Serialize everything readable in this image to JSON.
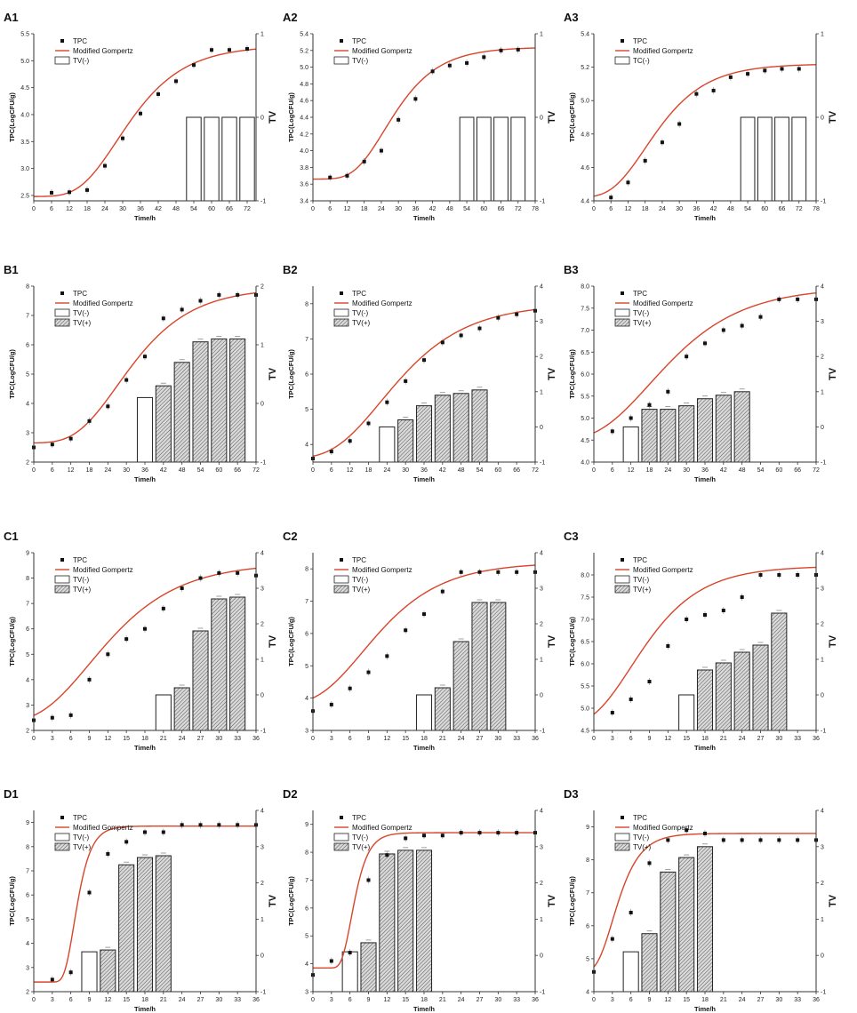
{
  "colors": {
    "fit": "#d8452b",
    "points": "#111111",
    "axis": "#333333",
    "bar_edge": "#222222"
  },
  "chart_data": [
    {
      "type": "bar+line",
      "panel": "A1",
      "xlabel": "Time/h",
      "ylabel": "TPC(LogCFU/g)",
      "y2label": "TV",
      "xlim": [
        0,
        75
      ],
      "xticks": [
        0,
        6,
        12,
        18,
        24,
        30,
        36,
        42,
        48,
        54,
        60,
        66,
        72
      ],
      "ylim": [
        2.4,
        5.5
      ],
      "yticks": [
        2.5,
        3.0,
        3.5,
        4.0,
        4.5,
        5.0,
        5.5
      ],
      "y2lim": [
        -1,
        1
      ],
      "y2ticks": [
        -1,
        0,
        1
      ],
      "tpc_x": [
        6,
        12,
        18,
        24,
        30,
        36,
        42,
        48,
        54,
        60,
        66,
        72
      ],
      "tpc_y": [
        2.55,
        2.56,
        2.6,
        3.05,
        3.56,
        4.02,
        4.38,
        4.62,
        4.92,
        5.2,
        5.2,
        5.22
      ],
      "gompertz": {
        "a": 2.48,
        "c": 2.8,
        "b": 0.08,
        "m": 28
      },
      "tv_neg": {
        "x": [
          54,
          60,
          66,
          72
        ],
        "values": [
          0,
          0,
          0,
          0
        ]
      },
      "tv_pos": {
        "x": [],
        "values": []
      },
      "legend": [
        "TPC",
        "Modified Gompertz",
        "TV(-)"
      ]
    },
    {
      "type": "bar+line",
      "panel": "A2",
      "xlabel": "Time/h",
      "ylabel": "TPC(LogCFU/g)",
      "y2label": "TV",
      "xlim": [
        0,
        78
      ],
      "xticks": [
        0,
        6,
        12,
        18,
        24,
        30,
        36,
        42,
        48,
        54,
        60,
        66,
        72,
        78
      ],
      "ylim": [
        3.4,
        5.4
      ],
      "yticks": [
        3.4,
        3.6,
        3.8,
        4.0,
        4.2,
        4.4,
        4.6,
        4.8,
        5.0,
        5.2,
        5.4
      ],
      "y2lim": [
        -1,
        1
      ],
      "y2ticks": [
        -1,
        0,
        1
      ],
      "tpc_x": [
        6,
        12,
        18,
        24,
        30,
        36,
        42,
        48,
        54,
        60,
        66,
        72
      ],
      "tpc_y": [
        3.68,
        3.7,
        3.87,
        4.0,
        4.37,
        4.62,
        4.95,
        5.02,
        5.05,
        5.12,
        5.2,
        5.21
      ],
      "gompertz": {
        "a": 3.66,
        "c": 1.58,
        "b": 0.095,
        "m": 25
      },
      "tv_neg": {
        "x": [
          54,
          60,
          66,
          72
        ],
        "values": [
          0,
          0,
          0,
          0
        ]
      },
      "tv_pos": {
        "x": [],
        "values": []
      },
      "legend": [
        "TPC",
        "Modified Gompertz",
        "TV(-)"
      ]
    },
    {
      "type": "bar+line",
      "panel": "A3",
      "xlabel": "Time/h",
      "ylabel": "TPC(LogCFU/g)",
      "y2label": "TV",
      "xlim": [
        0,
        78
      ],
      "xticks": [
        0,
        6,
        12,
        18,
        24,
        30,
        36,
        42,
        48,
        54,
        60,
        66,
        72,
        78
      ],
      "ylim": [
        4.4,
        5.4
      ],
      "yticks": [
        4.4,
        4.6,
        4.8,
        5.0,
        5.2,
        5.4
      ],
      "y2lim": [
        -1,
        1
      ],
      "y2ticks": [
        -1,
        0,
        1
      ],
      "tpc_x": [
        6,
        12,
        18,
        24,
        30,
        36,
        42,
        48,
        54,
        60,
        66,
        72
      ],
      "tpc_y": [
        4.42,
        4.51,
        4.64,
        4.75,
        4.86,
        5.04,
        5.06,
        5.14,
        5.16,
        5.18,
        5.19,
        5.19
      ],
      "gompertz": {
        "a": 4.42,
        "c": 0.8,
        "b": 0.085,
        "m": 18
      },
      "tv_neg": {
        "x": [
          54,
          60,
          66,
          72
        ],
        "values": [
          0,
          0,
          0,
          0
        ]
      },
      "tv_pos": {
        "x": [],
        "values": []
      },
      "legend": [
        "TPC",
        "Modified Gompertz",
        "TC(-)"
      ]
    },
    {
      "type": "bar+line",
      "panel": "B1",
      "xlabel": "Time/h",
      "ylabel": "TPC(LogCFU/g)",
      "y2label": "TV",
      "xlim": [
        0,
        72
      ],
      "xticks": [
        0,
        6,
        12,
        18,
        24,
        30,
        36,
        42,
        48,
        54,
        60,
        66,
        72
      ],
      "ylim": [
        2,
        8
      ],
      "yticks": [
        2,
        3,
        4,
        5,
        6,
        7,
        8
      ],
      "y2lim": [
        -1,
        2
      ],
      "y2ticks": [
        -1,
        0,
        1,
        2
      ],
      "tpc_x": [
        0,
        6,
        12,
        18,
        24,
        30,
        36,
        42,
        48,
        54,
        60,
        66,
        72
      ],
      "tpc_y": [
        2.5,
        2.6,
        2.8,
        3.4,
        3.9,
        4.8,
        5.6,
        6.9,
        7.2,
        7.5,
        7.7,
        7.7,
        7.7
      ],
      "gompertz": {
        "a": 2.65,
        "c": 5.3,
        "b": 0.075,
        "m": 27
      },
      "tv_neg": {
        "x": [
          36
        ],
        "values": [
          0.1
        ]
      },
      "tv_pos": {
        "x": [
          42,
          48,
          54,
          60,
          66
        ],
        "values": [
          0.3,
          0.7,
          1.05,
          1.1,
          1.1
        ]
      },
      "legend": [
        "TPC",
        "Modified Gompertz",
        "TV(-)",
        "TV(+)"
      ]
    },
    {
      "type": "bar+line",
      "panel": "B2",
      "xlabel": "Time/h",
      "ylabel": "TPC(LogCFU/g)",
      "y2label": "TV",
      "xlim": [
        0,
        72
      ],
      "xticks": [
        0,
        6,
        12,
        18,
        24,
        30,
        36,
        42,
        48,
        54,
        60,
        66,
        72
      ],
      "ylim": [
        3.5,
        8.5
      ],
      "yticks": [
        4,
        5,
        6,
        7,
        8
      ],
      "y2lim": [
        -1,
        4
      ],
      "y2ticks": [
        -1,
        0,
        1,
        2,
        3,
        4
      ],
      "tpc_x": [
        0,
        6,
        12,
        18,
        24,
        30,
        36,
        42,
        48,
        54,
        60,
        66,
        72
      ],
      "tpc_y": [
        3.6,
        3.8,
        4.1,
        4.6,
        5.2,
        5.8,
        6.4,
        6.9,
        7.1,
        7.3,
        7.6,
        7.7,
        7.8
      ],
      "gompertz": {
        "a": 3.6,
        "c": 4.4,
        "b": 0.065,
        "m": 22
      },
      "tv_neg": {
        "x": [
          24
        ],
        "values": [
          0
        ]
      },
      "tv_pos": {
        "x": [
          30,
          36,
          42,
          48,
          54
        ],
        "values": [
          0.2,
          0.6,
          0.9,
          0.95,
          1.05
        ]
      },
      "legend": [
        "TPC",
        "Modified Gompertz",
        "TV(-)",
        "TV(+)"
      ]
    },
    {
      "type": "bar+line",
      "panel": "B3",
      "xlabel": "Time/h",
      "ylabel": "TPC(LogCFU/g)",
      "y2label": "TV",
      "xlim": [
        0,
        72
      ],
      "xticks": [
        0,
        6,
        12,
        18,
        24,
        30,
        36,
        42,
        48,
        54,
        60,
        66,
        72
      ],
      "ylim": [
        4.0,
        8.0
      ],
      "yticks": [
        4.0,
        4.5,
        5.0,
        5.5,
        6.0,
        6.5,
        7.0,
        7.5,
        8.0
      ],
      "y2lim": [
        -1,
        4
      ],
      "y2ticks": [
        -1,
        0,
        1,
        2,
        3,
        4
      ],
      "tpc_x": [
        6,
        12,
        18,
        24,
        30,
        36,
        42,
        48,
        54,
        60,
        66,
        72
      ],
      "tpc_y": [
        4.7,
        5.0,
        5.3,
        5.6,
        6.4,
        6.7,
        7.0,
        7.1,
        7.3,
        7.7,
        7.7,
        7.7
      ],
      "gompertz": {
        "a": 4.48,
        "c": 3.5,
        "b": 0.06,
        "m": 18
      },
      "tv_neg": {
        "x": [
          12
        ],
        "values": [
          0
        ]
      },
      "tv_pos": {
        "x": [
          18,
          24,
          30,
          36,
          42,
          48
        ],
        "values": [
          0.5,
          0.5,
          0.6,
          0.8,
          0.9,
          1.0
        ]
      },
      "legend": [
        "TPC",
        "Modified Gompertz",
        "TV(-)",
        "TV(+)"
      ]
    },
    {
      "type": "bar+line",
      "panel": "C1",
      "xlabel": "Time/h",
      "ylabel": "TPC(LogCFU/g)",
      "y2label": "TV",
      "xlim": [
        0,
        36
      ],
      "xticks": [
        0,
        3,
        6,
        9,
        12,
        15,
        18,
        21,
        24,
        27,
        30,
        33,
        36
      ],
      "ylim": [
        2,
        9
      ],
      "yticks": [
        2,
        3,
        4,
        5,
        6,
        7,
        8,
        9
      ],
      "y2lim": [
        -1,
        4
      ],
      "y2ticks": [
        -1,
        0,
        1,
        2,
        3,
        4
      ],
      "tpc_x": [
        0,
        3,
        6,
        9,
        12,
        15,
        18,
        21,
        24,
        27,
        30,
        33,
        36
      ],
      "tpc_y": [
        2.4,
        2.5,
        2.6,
        4.0,
        5.0,
        5.6,
        6.0,
        6.8,
        7.6,
        8.0,
        8.2,
        8.2,
        8.1
      ],
      "gompertz": {
        "a": 2.3,
        "c": 6.3,
        "b": 0.125,
        "m": 9
      },
      "tv_neg": {
        "x": [
          21
        ],
        "values": [
          0
        ]
      },
      "tv_pos": {
        "x": [
          24,
          27,
          30,
          33
        ],
        "values": [
          0.2,
          1.8,
          2.7,
          2.75
        ]
      },
      "legend": [
        "TPC",
        "Modified Gompertz",
        "TV(-)",
        "TV(+)"
      ]
    },
    {
      "type": "bar+line",
      "panel": "C2",
      "xlabel": "Time/h",
      "ylabel": "TPC(LogCFU/g)",
      "y2label": "TV",
      "xlim": [
        0,
        36
      ],
      "xticks": [
        0,
        3,
        6,
        9,
        12,
        15,
        18,
        21,
        24,
        27,
        30,
        33,
        36
      ],
      "ylim": [
        3,
        8.5
      ],
      "yticks": [
        3,
        4,
        5,
        6,
        7,
        8
      ],
      "y2lim": [
        -1,
        4
      ],
      "y2ticks": [
        -1,
        0,
        1,
        2,
        3,
        4
      ],
      "tpc_x": [
        0,
        3,
        6,
        9,
        12,
        15,
        18,
        21,
        24,
        27,
        30,
        33,
        36
      ],
      "tpc_y": [
        3.6,
        3.8,
        4.3,
        4.8,
        5.3,
        6.1,
        6.6,
        7.3,
        7.9,
        7.9,
        7.9,
        7.9,
        7.9
      ],
      "gompertz": {
        "a": 3.8,
        "c": 4.4,
        "b": 0.14,
        "m": 8
      },
      "tv_neg": {
        "x": [
          18
        ],
        "values": [
          0
        ]
      },
      "tv_pos": {
        "x": [
          21,
          24,
          27,
          30
        ],
        "values": [
          0.2,
          1.5,
          2.6,
          2.6
        ]
      },
      "legend": [
        "TPC",
        "Modified Gompertz",
        "TV(-)",
        "TV(+)"
      ]
    },
    {
      "type": "bar+line",
      "panel": "C3",
      "xlabel": "Time/h",
      "ylabel": "TPC(LogCFU/g)",
      "y2label": "TV",
      "xlim": [
        0,
        36
      ],
      "xticks": [
        0,
        3,
        6,
        9,
        12,
        15,
        18,
        21,
        24,
        27,
        30,
        33,
        36
      ],
      "ylim": [
        4.5,
        8.5
      ],
      "yticks": [
        4.5,
        5.0,
        5.5,
        6.0,
        6.5,
        7.0,
        7.5,
        8.0
      ],
      "y2lim": [
        -1,
        4
      ],
      "y2ticks": [
        -1,
        0,
        1,
        2,
        3,
        4
      ],
      "tpc_x": [
        3,
        6,
        9,
        12,
        15,
        18,
        21,
        24,
        27,
        30,
        33,
        36
      ],
      "tpc_y": [
        4.9,
        5.2,
        5.6,
        6.4,
        7.0,
        7.1,
        7.2,
        7.5,
        8.0,
        8.0,
        8.0,
        8.0
      ],
      "gompertz": {
        "a": 4.6,
        "c": 3.6,
        "b": 0.16,
        "m": 6
      },
      "tv_neg": {
        "x": [
          15
        ],
        "values": [
          0
        ]
      },
      "tv_pos": {
        "x": [
          18,
          21,
          24,
          27,
          30
        ],
        "values": [
          0.7,
          0.9,
          1.2,
          1.4,
          2.3
        ]
      },
      "legend": [
        "TPC",
        "Modified Gompertz",
        "TV(-)",
        "TV(+)"
      ]
    },
    {
      "type": "bar+line",
      "panel": "D1",
      "xlabel": "Time/h",
      "ylabel": "TPC(LogCFU/g)",
      "y2label": "TV",
      "xlim": [
        0,
        36
      ],
      "xticks": [
        0,
        3,
        6,
        9,
        12,
        15,
        18,
        21,
        24,
        27,
        30,
        33,
        36
      ],
      "ylim": [
        2,
        9.5
      ],
      "yticks": [
        2,
        3,
        4,
        5,
        6,
        7,
        8,
        9
      ],
      "y2lim": [
        -1,
        4
      ],
      "y2ticks": [
        -1,
        0,
        1,
        2,
        3,
        4
      ],
      "tpc_x": [
        3,
        6,
        9,
        12,
        15,
        18,
        21,
        24,
        27,
        30,
        33,
        36
      ],
      "tpc_y": [
        2.5,
        2.8,
        6.1,
        7.7,
        8.2,
        8.6,
        8.6,
        8.9,
        8.9,
        8.9,
        8.9,
        8.9
      ],
      "gompertz": {
        "a": 2.4,
        "c": 6.45,
        "b": 0.65,
        "m": 6.5
      },
      "tv_neg": {
        "x": [
          9
        ],
        "values": [
          0.1
        ]
      },
      "tv_pos": {
        "x": [
          12,
          15,
          18,
          21
        ],
        "values": [
          0.15,
          2.5,
          2.7,
          2.75
        ]
      },
      "legend": [
        "TPC",
        "Modified Gompertz",
        "TV(-)",
        "TV(+)"
      ]
    },
    {
      "type": "bar+line",
      "panel": "D2",
      "xlabel": "Time/h",
      "ylabel": "TPC(LogCFU/g)",
      "y2label": "TV",
      "xlim": [
        0,
        36
      ],
      "xticks": [
        0,
        3,
        6,
        9,
        12,
        15,
        18,
        21,
        24,
        27,
        30,
        33,
        36
      ],
      "ylim": [
        3,
        9.5
      ],
      "yticks": [
        3,
        4,
        5,
        6,
        7,
        8,
        9
      ],
      "y2lim": [
        -1,
        4
      ],
      "y2ticks": [
        -1,
        0,
        1,
        2,
        3,
        4
      ],
      "tpc_x": [
        0,
        3,
        6,
        9,
        12,
        15,
        18,
        21,
        24,
        27,
        30,
        33,
        36
      ],
      "tpc_y": [
        3.6,
        4.1,
        4.4,
        7.0,
        7.9,
        8.5,
        8.6,
        8.6,
        8.7,
        8.7,
        8.7,
        8.7,
        8.7
      ],
      "gompertz": {
        "a": 3.85,
        "c": 4.85,
        "b": 0.65,
        "m": 6.2
      },
      "tv_neg": {
        "x": [
          6
        ],
        "values": [
          0.1
        ]
      },
      "tv_pos": {
        "x": [
          9,
          12,
          15,
          18
        ],
        "values": [
          0.35,
          2.8,
          2.9,
          2.9
        ]
      },
      "legend": [
        "TPC",
        "Modified Gompertz",
        "TV(-)",
        "TV(+)"
      ]
    },
    {
      "type": "bar+line",
      "panel": "D3",
      "xlabel": "Time/h",
      "ylabel": "TPC(LogCFU/g)",
      "y2label": "TV",
      "xlim": [
        0,
        36
      ],
      "xticks": [
        0,
        3,
        6,
        9,
        12,
        15,
        18,
        21,
        24,
        27,
        30,
        33,
        36
      ],
      "ylim": [
        4,
        9.5
      ],
      "yticks": [
        4,
        5,
        6,
        7,
        8,
        9
      ],
      "y2lim": [
        -1,
        4
      ],
      "y2ticks": [
        -1,
        0,
        1,
        2,
        3,
        4
      ],
      "tpc_x": [
        0,
        3,
        6,
        9,
        12,
        15,
        18,
        21,
        24,
        27,
        30,
        33,
        36
      ],
      "tpc_y": [
        4.6,
        5.6,
        6.4,
        7.9,
        8.6,
        8.9,
        8.8,
        8.6,
        8.6,
        8.6,
        8.6,
        8.6,
        8.6
      ],
      "gompertz": {
        "a": 4.6,
        "c": 4.2,
        "b": 0.4,
        "m": 3
      },
      "tv_neg": {
        "x": [
          6
        ],
        "values": [
          0.1
        ]
      },
      "tv_pos": {
        "x": [
          9,
          12,
          15,
          18
        ],
        "values": [
          0.6,
          2.3,
          2.7,
          3.0
        ]
      },
      "legend": [
        "TPC",
        "Modified Gompertz",
        "TV(-)",
        "TV(+)"
      ]
    }
  ]
}
